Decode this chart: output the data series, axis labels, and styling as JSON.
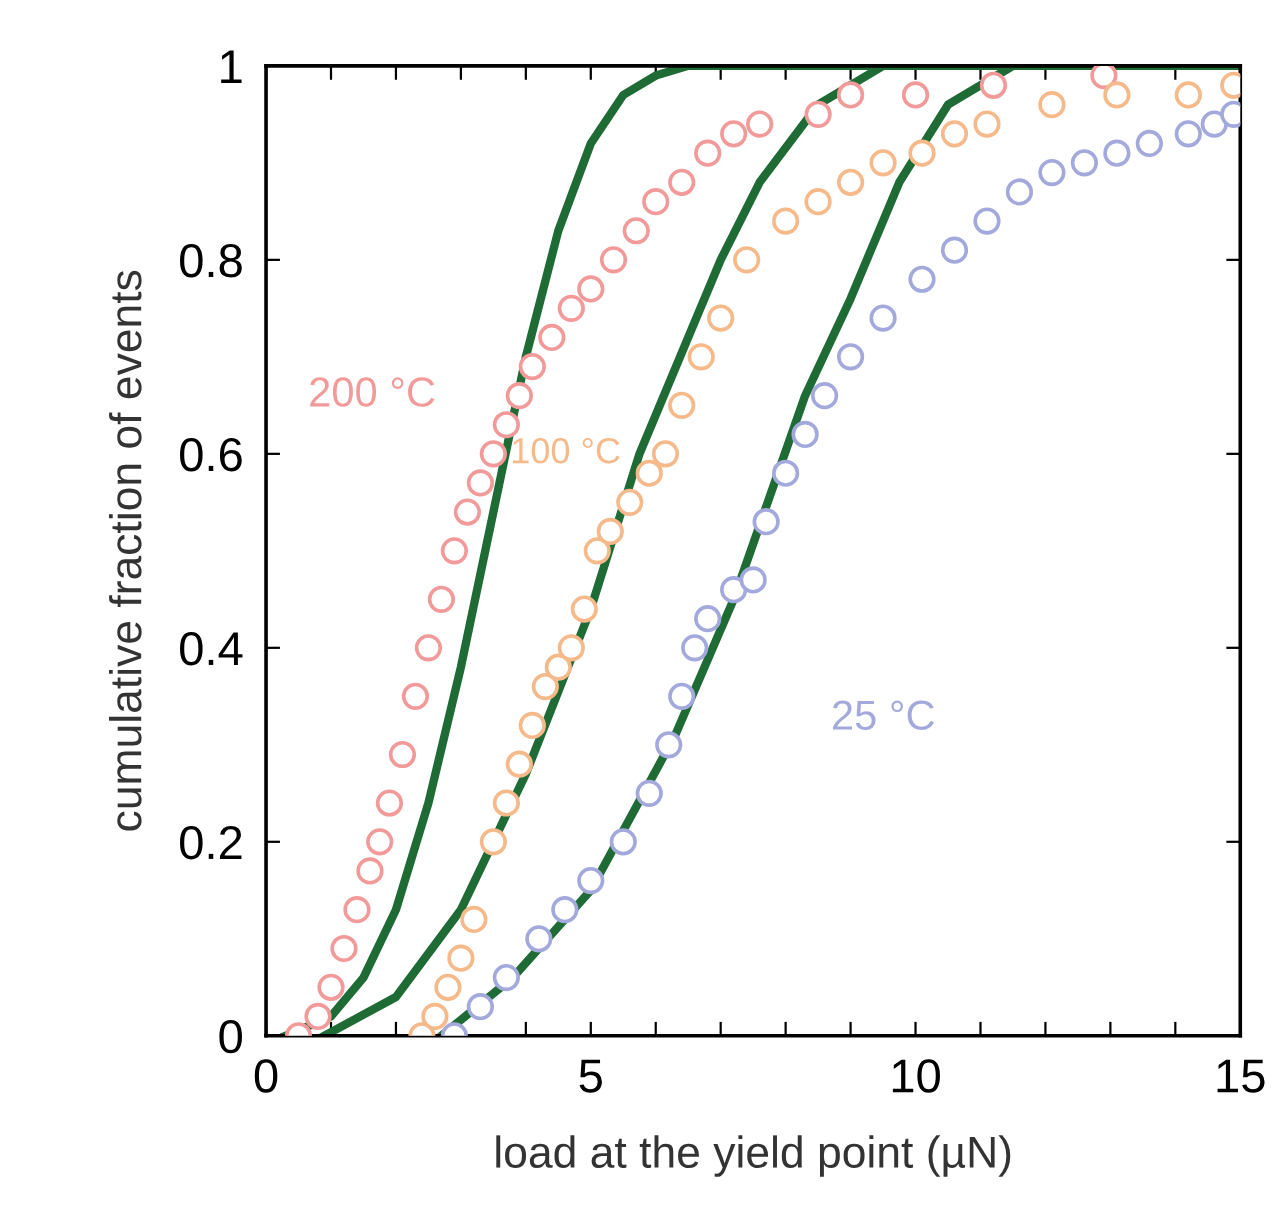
{
  "chart_data": {
    "type": "scatter",
    "xlabel": "load at the yield point (µN)",
    "ylabel": "cumulative fraction of events",
    "xlim": [
      0,
      15
    ],
    "ylim": [
      0,
      1
    ],
    "xticks": [
      0,
      {
        "value": 1,
        "label": null
      },
      {
        "value": 2,
        "label": null
      },
      {
        "value": 3,
        "label": null
      },
      {
        "value": 4,
        "label": null
      },
      5,
      {
        "value": 6,
        "label": null
      },
      {
        "value": 7,
        "label": null
      },
      {
        "value": 8,
        "label": null
      },
      {
        "value": 9,
        "label": null
      },
      10,
      {
        "value": 11,
        "label": null
      },
      {
        "value": 12,
        "label": null
      },
      {
        "value": 13,
        "label": null
      },
      {
        "value": 14,
        "label": null
      },
      15
    ],
    "yticks": [
      0,
      0.2,
      0.4,
      0.6,
      0.8,
      1
    ],
    "grid": false,
    "legend": false,
    "series": [
      {
        "type": "line",
        "color": "#1e6b35",
        "marker": "none",
        "line_style": "solid",
        "x": [
          0.3,
          1,
          1.5,
          2,
          2.5,
          3,
          3.5,
          4,
          4.5,
          5,
          5.5,
          6,
          6.5,
          15
        ],
        "values": [
          0,
          0.02,
          0.06,
          0.13,
          0.24,
          0.38,
          0.54,
          0.7,
          0.83,
          0.92,
          0.97,
          0.99,
          1,
          1
        ]
      },
      {
        "type": "line",
        "color": "#1e6b35",
        "marker": "none",
        "line_style": "solid",
        "x": [
          0.9,
          2,
          3,
          4,
          5,
          5.75,
          6.5,
          7,
          7.6,
          8.5,
          9.5,
          15
        ],
        "values": [
          0,
          0.04,
          0.13,
          0.27,
          0.44,
          0.6,
          0.72,
          0.8,
          0.88,
          0.96,
          1,
          1
        ]
      },
      {
        "type": "line",
        "color": "#1e6b35",
        "marker": "none",
        "line_style": "solid",
        "x": [
          2.7,
          3.8,
          5,
          6.3,
          7.2,
          8.3,
          9,
          9.75,
          10.5,
          11.5,
          15
        ],
        "values": [
          0,
          0.06,
          0.15,
          0.31,
          0.45,
          0.66,
          0.76,
          0.88,
          0.96,
          1,
          1
        ]
      },
      {
        "name": "200 °C",
        "color": "#f29a9a",
        "marker": "circle",
        "x": [
          0.5,
          0.8,
          1.0,
          1.2,
          1.4,
          1.6,
          1.75,
          1.9,
          2.1,
          2.3,
          2.5,
          2.7,
          2.9,
          3.1,
          3.3,
          3.5,
          3.7,
          3.9,
          4.1,
          4.4,
          4.7,
          5.0,
          5.35,
          5.7,
          6.0,
          6.4,
          6.8,
          7.2,
          7.6,
          8.5,
          9.0,
          10.0,
          11.2,
          12.9
        ],
        "values": [
          0,
          0.02,
          0.05,
          0.09,
          0.13,
          0.17,
          0.2,
          0.24,
          0.29,
          0.35,
          0.4,
          0.45,
          0.5,
          0.54,
          0.57,
          0.6,
          0.63,
          0.66,
          0.69,
          0.72,
          0.75,
          0.77,
          0.8,
          0.83,
          0.86,
          0.88,
          0.91,
          0.93,
          0.94,
          0.95,
          0.97,
          0.97,
          0.98,
          0.99
        ]
      },
      {
        "name": "100 °C",
        "color": "#f5b98a",
        "marker": "circle",
        "x": [
          2.4,
          2.6,
          2.8,
          3.0,
          3.2,
          3.5,
          3.7,
          3.9,
          4.1,
          4.3,
          4.5,
          4.7,
          4.9,
          5.1,
          5.3,
          5.6,
          5.9,
          6.15,
          6.4,
          6.7,
          7.0,
          7.4,
          8.0,
          8.5,
          9.0,
          9.5,
          10.1,
          10.6,
          11.1,
          12.1,
          13.1,
          14.2,
          14.9
        ],
        "values": [
          0,
          0.02,
          0.05,
          0.08,
          0.12,
          0.2,
          0.24,
          0.28,
          0.32,
          0.36,
          0.38,
          0.4,
          0.44,
          0.5,
          0.52,
          0.55,
          0.58,
          0.6,
          0.65,
          0.7,
          0.74,
          0.8,
          0.84,
          0.86,
          0.88,
          0.9,
          0.91,
          0.93,
          0.94,
          0.96,
          0.97,
          0.97,
          0.98
        ]
      },
      {
        "name": "25 °C",
        "color": "#a3a9dc",
        "marker": "circle",
        "x": [
          2.9,
          3.3,
          3.7,
          4.2,
          4.6,
          5.0,
          5.5,
          5.9,
          6.2,
          6.4,
          6.6,
          6.8,
          7.2,
          7.5,
          7.7,
          8.0,
          8.3,
          8.6,
          9.0,
          9.5,
          10.1,
          10.6,
          11.1,
          11.6,
          12.1,
          12.6,
          13.1,
          13.6,
          14.2,
          14.6,
          14.9
        ],
        "values": [
          0,
          0.03,
          0.06,
          0.1,
          0.13,
          0.16,
          0.2,
          0.25,
          0.3,
          0.35,
          0.4,
          0.43,
          0.46,
          0.47,
          0.53,
          0.58,
          0.62,
          0.66,
          0.7,
          0.74,
          0.78,
          0.81,
          0.84,
          0.87,
          0.89,
          0.9,
          0.91,
          0.92,
          0.93,
          0.94,
          0.95
        ]
      }
    ]
  }
}
